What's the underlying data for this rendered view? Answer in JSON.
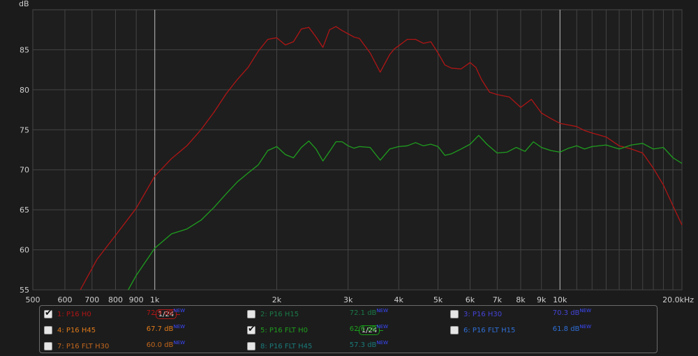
{
  "chart_data": {
    "type": "line",
    "xscale": "log",
    "xlim": [
      500,
      20000
    ],
    "ylim": [
      55,
      90
    ],
    "ylabel": "dB",
    "y_ticks": [
      55,
      60,
      65,
      70,
      75,
      80,
      85
    ],
    "x_ticks": [
      {
        "v": 500,
        "label": "500"
      },
      {
        "v": 600,
        "label": "600"
      },
      {
        "v": 700,
        "label": "700"
      },
      {
        "v": 800,
        "label": "800"
      },
      {
        "v": 900,
        "label": "900"
      },
      {
        "v": 1000,
        "label": "1k"
      },
      {
        "v": 2000,
        "label": "2k"
      },
      {
        "v": 3000,
        "label": "3k"
      },
      {
        "v": 4000,
        "label": "4k"
      },
      {
        "v": 5000,
        "label": "5k"
      },
      {
        "v": 6000,
        "label": "6k"
      },
      {
        "v": 7000,
        "label": "7k"
      },
      {
        "v": 8000,
        "label": "8k"
      },
      {
        "v": 9000,
        "label": "9k"
      },
      {
        "v": 10000,
        "label": "10k"
      },
      {
        "v": 20000,
        "label": "20.0kHz"
      }
    ],
    "minor_x": [
      11000,
      12000,
      13000,
      14000,
      15000,
      16000,
      17000,
      18000,
      19000
    ],
    "highlight_x": [
      1000,
      10000
    ],
    "grid": true,
    "series": [
      {
        "name": "1: P16 H0",
        "color": "#b01515",
        "x": [
          655,
          720,
          800,
          900,
          1000,
          1100,
          1200,
          1300,
          1400,
          1500,
          1600,
          1700,
          1800,
          1900,
          2000,
          2100,
          2200,
          2300,
          2400,
          2500,
          2600,
          2700,
          2800,
          2900,
          3000,
          3100,
          3200,
          3400,
          3600,
          3800,
          3900,
          4000,
          4200,
          4400,
          4600,
          4800,
          5000,
          5200,
          5400,
          5700,
          6000,
          6200,
          6400,
          6700,
          7000,
          7500,
          8000,
          8500,
          9000,
          9500,
          10000,
          10500,
          11000,
          11500,
          12000,
          13000,
          14000,
          15000,
          16000,
          17000,
          18000,
          19000,
          20000
        ],
        "y": [
          55.0,
          58.8,
          61.8,
          65.2,
          69.2,
          71.4,
          73.0,
          75.0,
          77.2,
          79.5,
          81.3,
          82.8,
          84.8,
          86.3,
          86.5,
          85.6,
          86.0,
          87.6,
          87.8,
          86.6,
          85.3,
          87.5,
          87.9,
          87.4,
          87.0,
          86.6,
          86.4,
          84.6,
          82.2,
          84.4,
          85.1,
          85.5,
          86.3,
          86.3,
          85.8,
          86.0,
          84.6,
          83.1,
          82.7,
          82.6,
          83.4,
          82.8,
          81.3,
          79.7,
          79.4,
          79.1,
          77.8,
          78.8,
          77.1,
          76.4,
          75.8,
          75.6,
          75.4,
          74.9,
          74.6,
          74.1,
          73.0,
          72.6,
          72.1,
          70.2,
          68.1,
          65.5,
          63.1
        ]
      },
      {
        "name": "5: P16 FLT H0",
        "color": "#1e9e1e",
        "x": [
          860,
          900,
          1000,
          1100,
          1200,
          1300,
          1400,
          1500,
          1600,
          1700,
          1800,
          1900,
          2000,
          2100,
          2200,
          2300,
          2400,
          2500,
          2600,
          2700,
          2800,
          2900,
          3000,
          3100,
          3200,
          3400,
          3600,
          3800,
          4000,
          4200,
          4400,
          4600,
          4800,
          5000,
          5200,
          5400,
          5700,
          6000,
          6300,
          6600,
          7000,
          7400,
          7800,
          8200,
          8600,
          9000,
          9500,
          10000,
          10500,
          11000,
          11500,
          12000,
          13000,
          14000,
          15000,
          16000,
          17000,
          18000,
          19000,
          20000
        ],
        "y": [
          55.0,
          56.8,
          60.2,
          62.0,
          62.6,
          63.7,
          65.3,
          67.0,
          68.5,
          69.6,
          70.6,
          72.4,
          72.9,
          71.9,
          71.5,
          72.8,
          73.6,
          72.6,
          71.1,
          72.3,
          73.5,
          73.5,
          73.0,
          72.7,
          72.9,
          72.8,
          71.2,
          72.6,
          72.9,
          73.0,
          73.4,
          73.0,
          73.2,
          72.9,
          71.8,
          72.0,
          72.6,
          73.2,
          74.3,
          73.2,
          72.1,
          72.2,
          72.8,
          72.3,
          73.5,
          72.8,
          72.4,
          72.2,
          72.7,
          73.0,
          72.6,
          72.9,
          73.1,
          72.6,
          73.1,
          73.3,
          72.6,
          72.8,
          71.5,
          70.8
        ]
      }
    ],
    "legend": [
      {
        "label": "1: P16 H0",
        "value": "72.9 dB",
        "checked": true,
        "color": "#b01515",
        "smoothing": "1/24",
        "col": 0,
        "row": 0
      },
      {
        "label": "2: P16 H15",
        "value": "72.1 dB",
        "checked": false,
        "color": "#1a7a47",
        "smoothing": "",
        "col": 1,
        "row": 0
      },
      {
        "label": "3: P16 H30",
        "value": "70.3 dB",
        "checked": false,
        "color": "#4444d8",
        "smoothing": "",
        "col": 2,
        "row": 0
      },
      {
        "label": "4: P16 H45",
        "value": "67.7 dB",
        "checked": false,
        "color": "#e07a1a",
        "smoothing": "",
        "col": 0,
        "row": 1
      },
      {
        "label": "5: P16 FLT H0",
        "value": "62.6 dB",
        "checked": true,
        "color": "#1e9e1e",
        "smoothing": "1/24",
        "col": 1,
        "row": 1
      },
      {
        "label": "6: P16 FLT H15",
        "value": "61.8 dB",
        "checked": false,
        "color": "#2f6fd6",
        "smoothing": "",
        "col": 2,
        "row": 1
      },
      {
        "label": "7: P16 FLT H30",
        "value": "60.0 dB",
        "checked": false,
        "color": "#c0661c",
        "smoothing": "",
        "col": 0,
        "row": 2
      },
      {
        "label": "8: P16 FLT H45",
        "value": "57.3 dB",
        "checked": false,
        "color": "#1a7a7a",
        "smoothing": "",
        "col": 1,
        "row": 2
      }
    ],
    "new_tag": "NEW"
  }
}
